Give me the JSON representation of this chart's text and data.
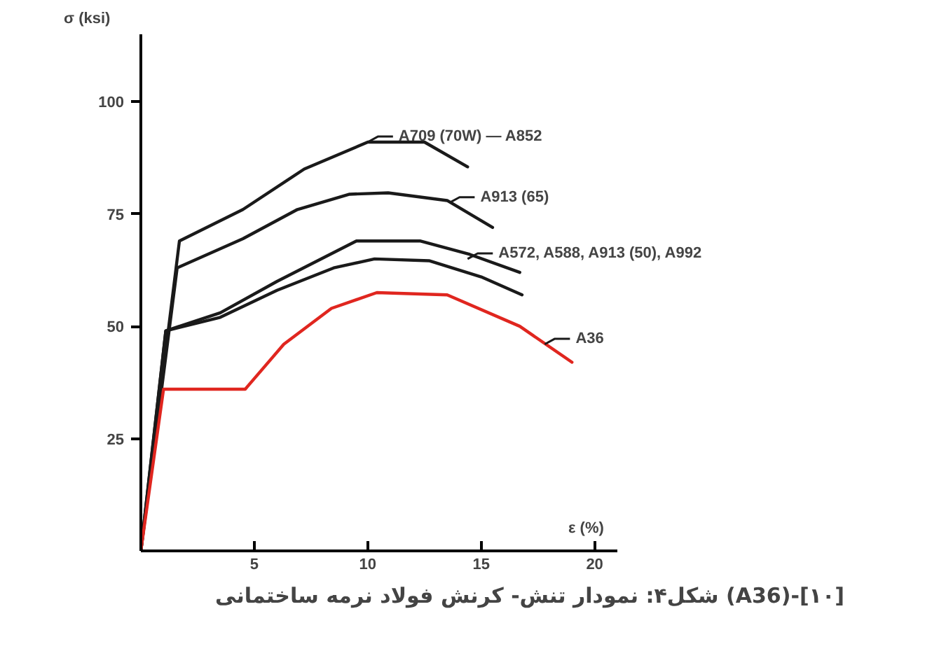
{
  "chart_data": {
    "type": "line",
    "title": "شکل۴: نمودار تنش- کرنش فولاد نرمه ساختمانی (A36)-[۱۰]",
    "xlabel": "ε (%)",
    "ylabel": "σ (ksi)",
    "xlim": [
      0,
      21
    ],
    "ylim": [
      0,
      115
    ],
    "xticks": [
      5,
      10,
      15,
      20
    ],
    "yticks": [
      25,
      50,
      75,
      100
    ],
    "grid": false,
    "series": [
      {
        "color": "#1a1a1a",
        "x": [
          0,
          1.7,
          4.5,
          7.2,
          10,
          12.5,
          14.4
        ],
        "values": [
          0,
          69,
          76,
          85,
          91,
          91,
          85.5
        ]
      },
      {
        "color": "#1a1a1a",
        "x": [
          0,
          1.6,
          4.5,
          6.9,
          9.2,
          10.9,
          13.5,
          15.5
        ],
        "values": [
          0,
          63,
          69.5,
          76,
          79.4,
          79.7,
          78,
          72
        ]
      },
      {
        "color": "#1a1a1a",
        "x": [
          0,
          1.1,
          3.5,
          6,
          9.5,
          12.3,
          14.5,
          16.7
        ],
        "values": [
          0,
          49,
          53,
          60,
          69,
          69,
          66,
          62
        ]
      },
      {
        "color": "#1a1a1a",
        "x": [
          0,
          1.1,
          3.5,
          6,
          8.5,
          10.3,
          12.7,
          15,
          16.8
        ],
        "values": [
          0,
          49,
          52,
          58,
          63,
          65,
          64.6,
          61,
          57
        ]
      },
      {
        "color": "#e0261f",
        "x": [
          0,
          1,
          4.6,
          4.7,
          6.3,
          8.4,
          10.4,
          13.5,
          16.7,
          19
        ],
        "values": [
          0,
          36,
          36,
          36.6,
          46,
          54,
          57.5,
          57,
          50,
          42
        ]
      }
    ],
    "annotations": [
      {
        "text": "A709 (70W) — A852",
        "x": 10,
        "y": 91
      },
      {
        "text": "A913 (65)",
        "x": 13.6,
        "y": 77.5
      },
      {
        "text": "A572, A588, A913 (50), A992",
        "x": 14.4,
        "y": 65
      },
      {
        "text": "A36",
        "x": 17.8,
        "y": 46
      }
    ]
  }
}
